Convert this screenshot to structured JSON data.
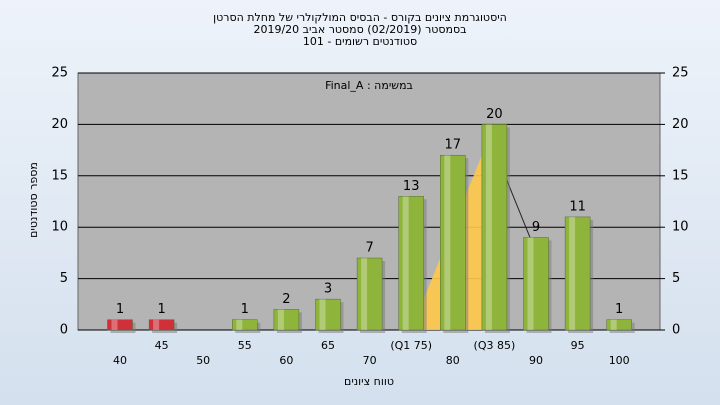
{
  "chart_data": {
    "type": "bar",
    "title": [
      "היסטוגרמת ציונים בקורס - הבסיס המולקולרי של מחלת הסרטן",
      "בסמסטר (02/2019)  סמסטר אביב 2019/20",
      "סטודנטים רשומים - 101"
    ],
    "annotation": "במשימה : Final_A",
    "x_label": "טווח ציונים",
    "y_label": "מספר סטודנטים",
    "categories": [
      "40",
      "45",
      "50",
      "55",
      "60",
      "65",
      "70",
      "(Q1 75)",
      "80",
      "(Q3 85)",
      "90",
      "95",
      "100"
    ],
    "values": [
      1,
      1,
      null,
      1,
      2,
      3,
      7,
      13,
      17,
      20,
      9,
      11,
      1
    ],
    "colors": [
      "#d0303a",
      "#d0303a",
      "#8fb43c",
      "#8fb43c",
      "#8fb43c",
      "#8fb43c",
      "#8fb43c",
      "#8fb43c",
      "#8fb43c",
      "#8fb43c",
      "#8fb43c",
      "#8fb43c",
      "#8fb43c"
    ],
    "ylim": [
      0,
      25
    ],
    "yticks": [
      0,
      5,
      10,
      15,
      20,
      25
    ],
    "y2lim": [
      0,
      25
    ],
    "y2ticks": [
      0,
      5,
      10,
      15,
      20,
      25
    ],
    "grid": true
  }
}
